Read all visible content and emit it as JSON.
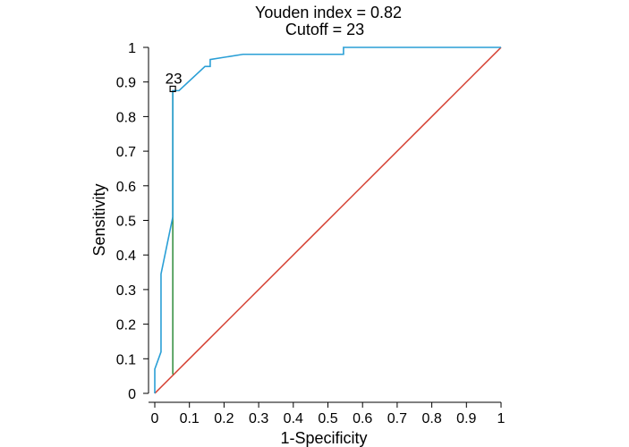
{
  "chart_data": {
    "type": "line",
    "title_lines": [
      "Youden index = 0.82",
      "Cutoff = 23"
    ],
    "xlabel": "1-Specificity",
    "ylabel": "Sensitivity",
    "xlim": [
      0,
      1
    ],
    "ylim": [
      0,
      1
    ],
    "x_ticks": [
      "0",
      "0.1",
      "0.2",
      "0.3",
      "0.4",
      "0.5",
      "0.6",
      "0.7",
      "0.8",
      "0.9",
      "1"
    ],
    "y_ticks": [
      "0",
      "0.1",
      "0.2",
      "0.3",
      "0.4",
      "0.5",
      "0.6",
      "0.7",
      "0.8",
      "0.9",
      "1"
    ],
    "grid": false,
    "series": [
      {
        "color": "#2a9fd6",
        "x": [
          0,
          0,
          0.018,
          0.018,
          0.052,
          0.052,
          0.07,
          0.145,
          0.16,
          0.16,
          0.255,
          0.545,
          0.545,
          1
        ],
        "y": [
          0,
          0.07,
          0.12,
          0.345,
          0.51,
          0.875,
          0.875,
          0.945,
          0.945,
          0.965,
          0.98,
          0.98,
          1,
          1
        ]
      },
      {
        "color": "#d43c2e",
        "x": [
          0,
          1
        ],
        "y": [
          0,
          1
        ]
      }
    ],
    "youden_line": {
      "x": 0.052,
      "y0": 0.055,
      "y1": 0.875,
      "color": "#2e8b3a"
    },
    "cutoff_point": {
      "x": 0.052,
      "y": 0.88,
      "label": "23"
    }
  }
}
